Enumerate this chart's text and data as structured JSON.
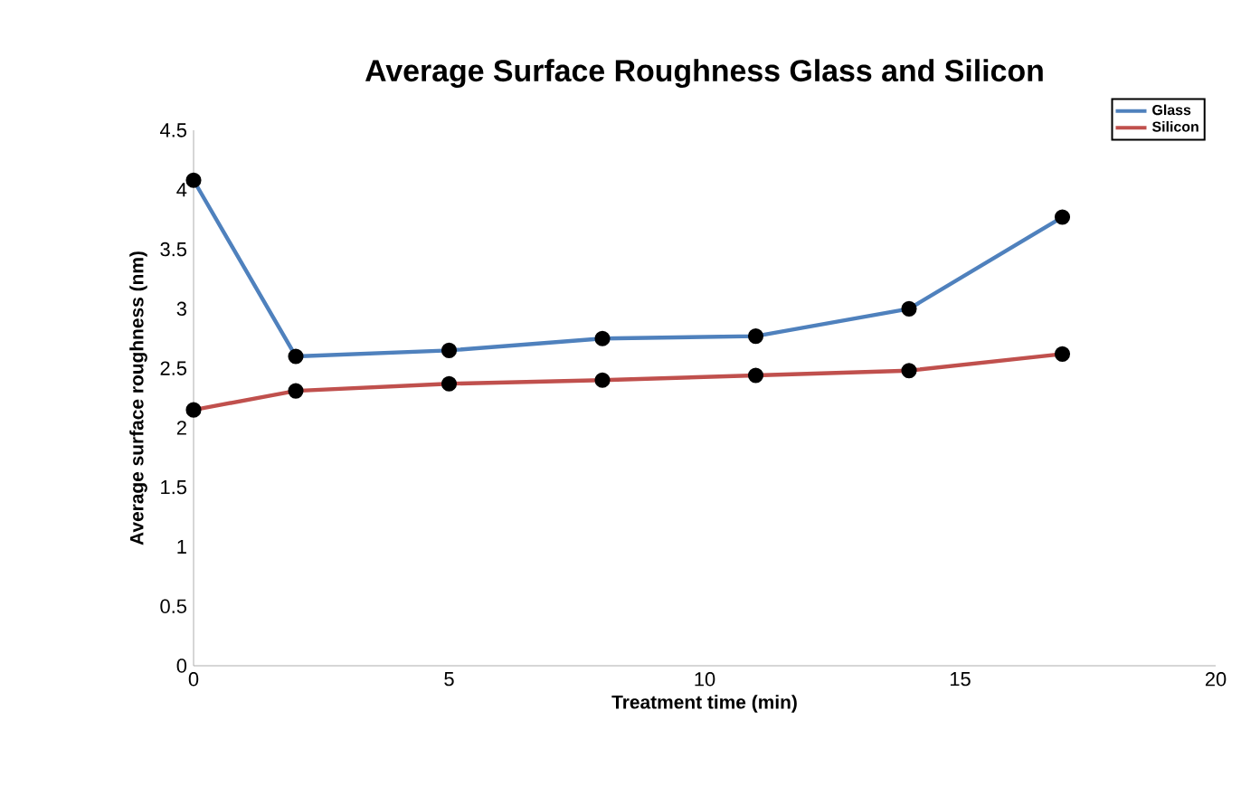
{
  "chart_data": {
    "type": "line",
    "title": "Average Surface Roughness Glass and Silicon",
    "xlabel": "Treatment  time (min)",
    "ylabel": "Average surface roughness (nm)",
    "x": [
      0,
      2,
      5,
      8,
      11,
      14,
      17
    ],
    "series": [
      {
        "name": "Glass",
        "color": "#4f81bd",
        "values": [
          4.08,
          2.6,
          2.65,
          2.75,
          2.77,
          3.0,
          3.77
        ]
      },
      {
        "name": "Silicon",
        "color": "#c0504d",
        "values": [
          2.15,
          2.31,
          2.37,
          2.4,
          2.44,
          2.48,
          2.62
        ]
      }
    ],
    "xlim": [
      0,
      20
    ],
    "xticks": [
      0,
      5,
      10,
      15,
      20
    ],
    "ylim": [
      0,
      4.5
    ],
    "yticks": [
      0,
      0.5,
      1,
      1.5,
      2,
      2.5,
      3,
      3.5,
      4,
      4.5
    ],
    "marker": "circle",
    "legend": "top right",
    "grid": false
  }
}
